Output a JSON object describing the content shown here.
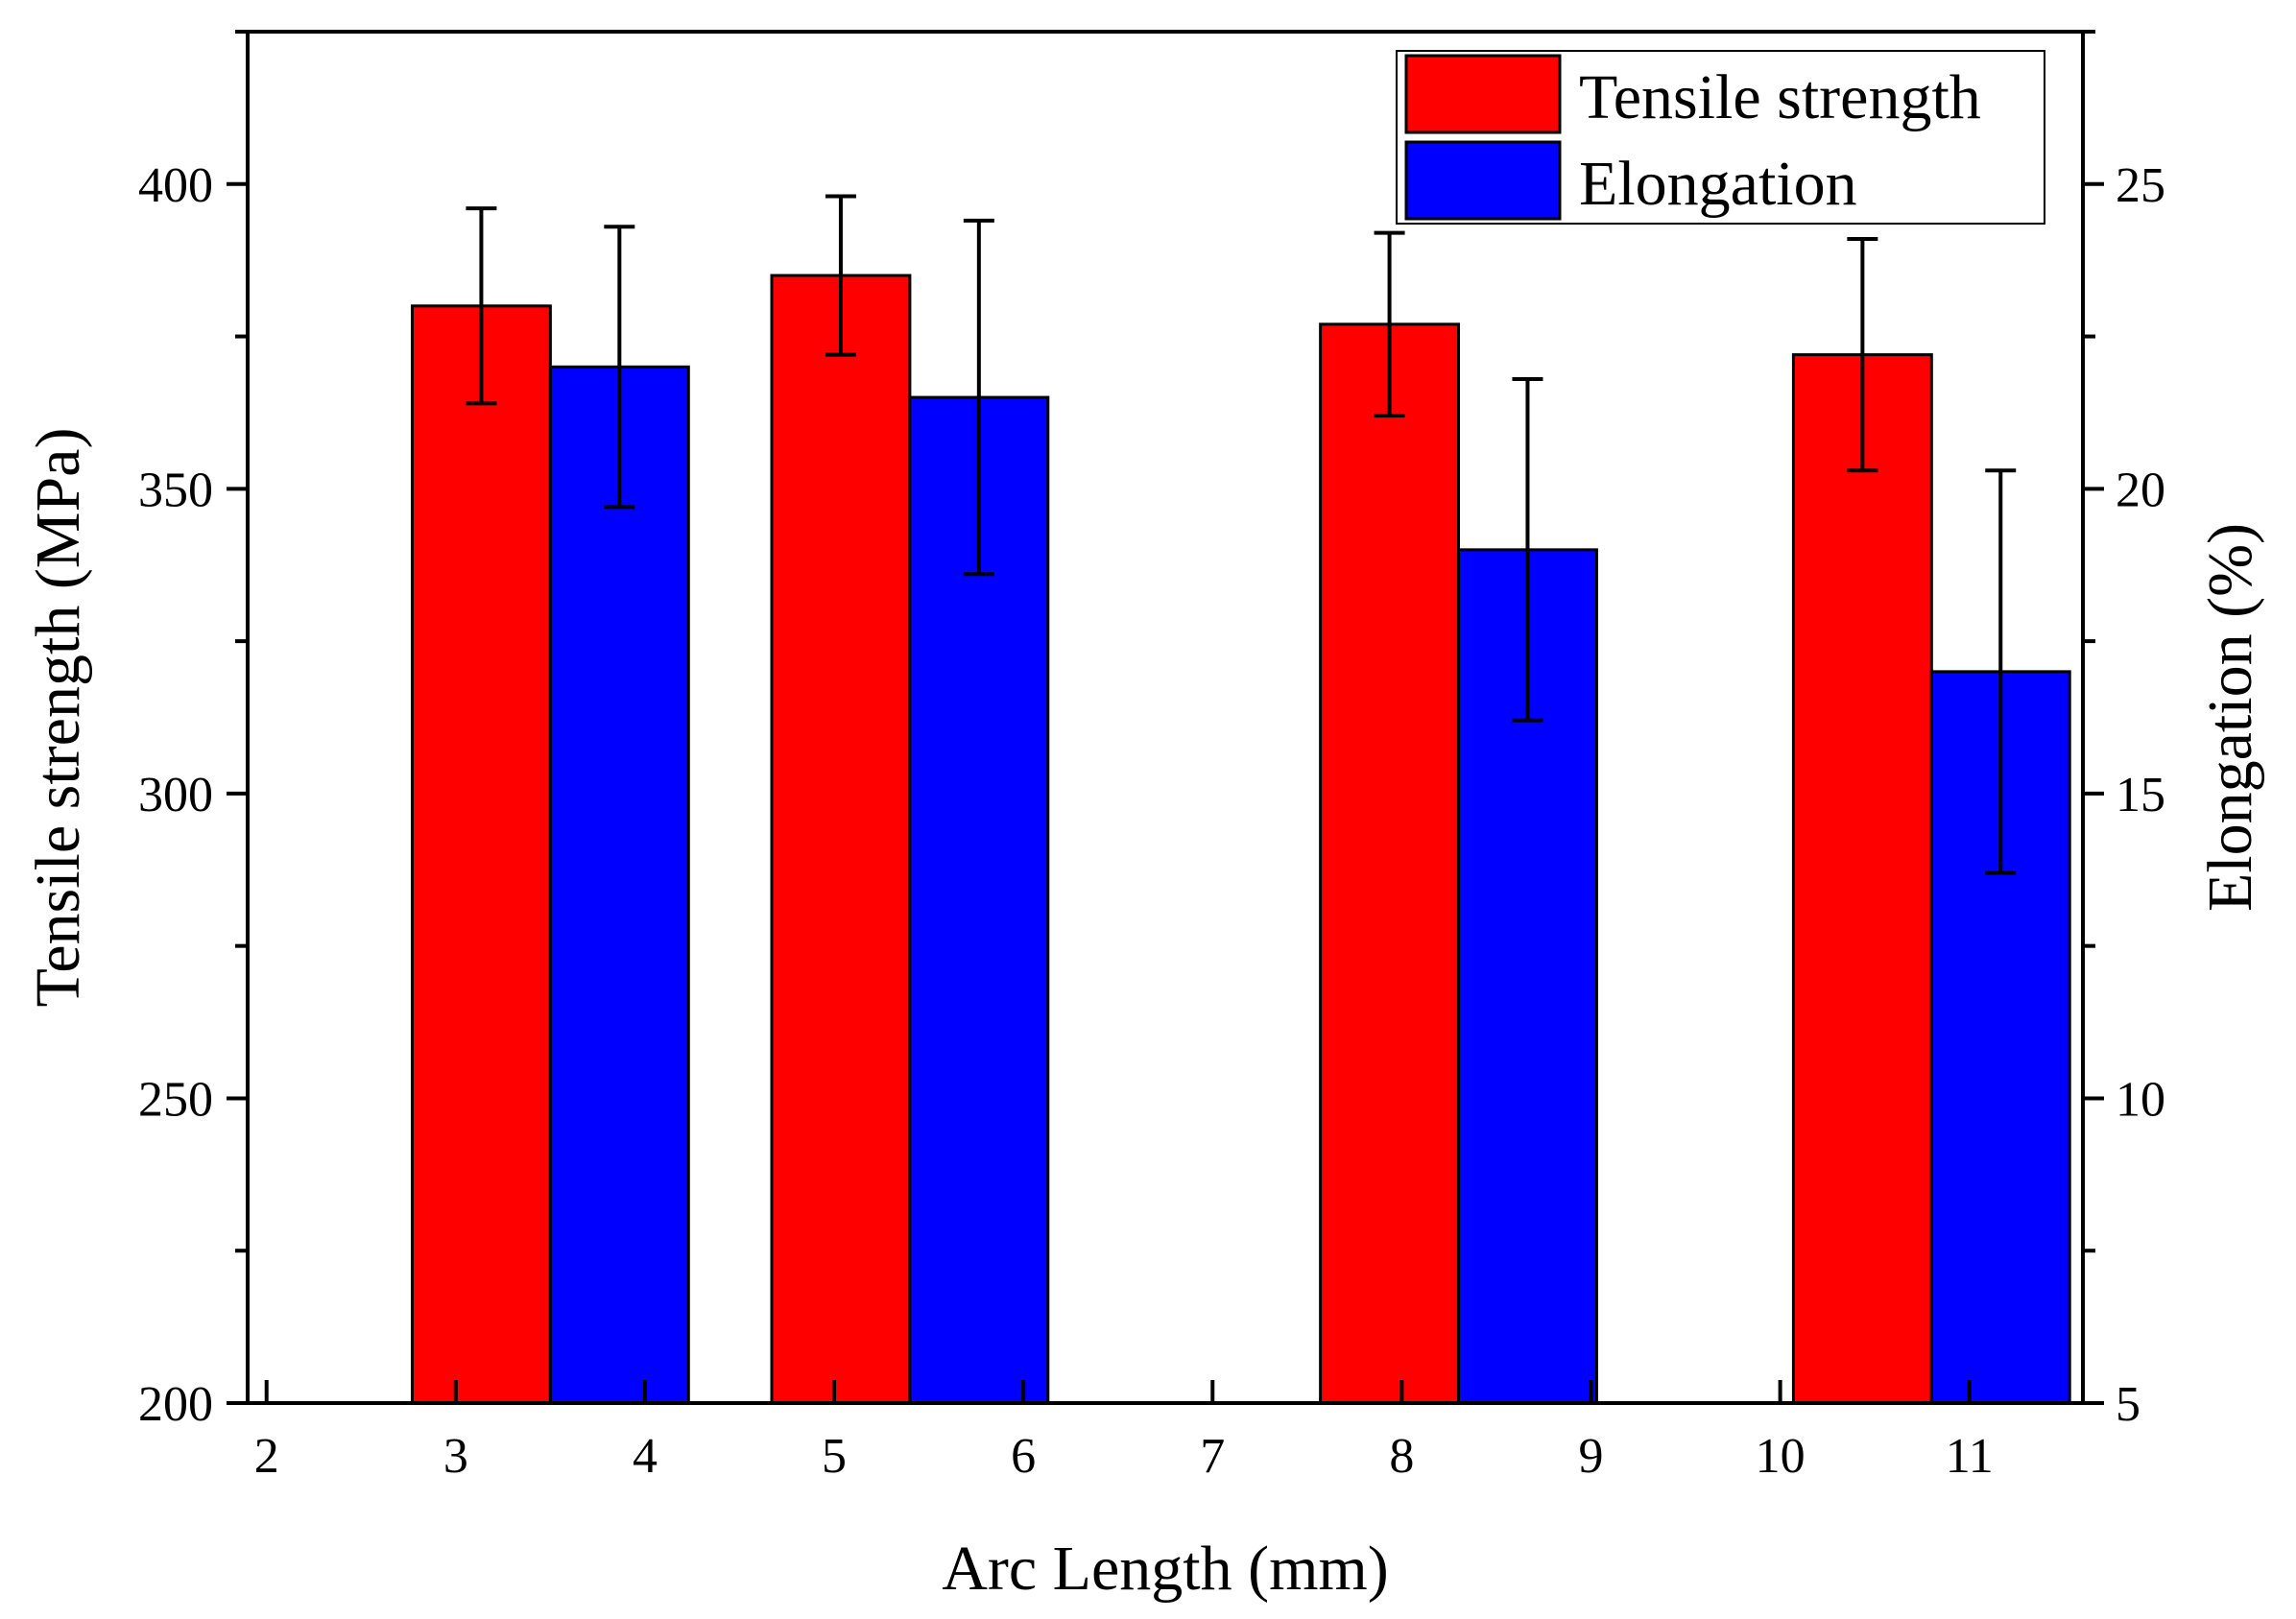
{
  "chart_data": {
    "type": "bar",
    "xlabel": "Arc Length (mm)",
    "ylabel_left": "Tensile strength (MPa)",
    "ylabel_right": "Elongation (%)",
    "xlim": [
      1.9,
      11.6
    ],
    "ylim_left": [
      200,
      425
    ],
    "ylim_right": [
      5,
      27.5
    ],
    "x_ticks": [
      "2",
      "3",
      "4",
      "5",
      "6",
      "7",
      "8",
      "9",
      "10",
      "11"
    ],
    "y_left_ticks": [
      "200",
      "250",
      "300",
      "350",
      "400"
    ],
    "y_right_ticks": [
      "5",
      "10",
      "15",
      "20",
      "25"
    ],
    "groups": [
      {
        "center": 3.5,
        "tensile": 380,
        "tensile_err": 16,
        "elongation": 22.0,
        "elongation_err": 2.3
      },
      {
        "center": 5.4,
        "tensile": 385,
        "tensile_err": 13,
        "elongation": 21.5,
        "elongation_err": 2.9
      },
      {
        "center": 8.3,
        "tensile": 377,
        "tensile_err": 15,
        "elongation": 19.0,
        "elongation_err": 2.8
      },
      {
        "center": 10.8,
        "tensile": 372,
        "tensile_err": 19,
        "elongation": 17.0,
        "elongation_err": 3.3
      }
    ],
    "bar_width_x": 0.73,
    "legend": {
      "position": "top-right",
      "entries": [
        "Tensile strength",
        "Elongation"
      ]
    },
    "colors": {
      "tensile": "#ff0000",
      "elongation": "#0000ff",
      "axis": "#000000"
    }
  }
}
